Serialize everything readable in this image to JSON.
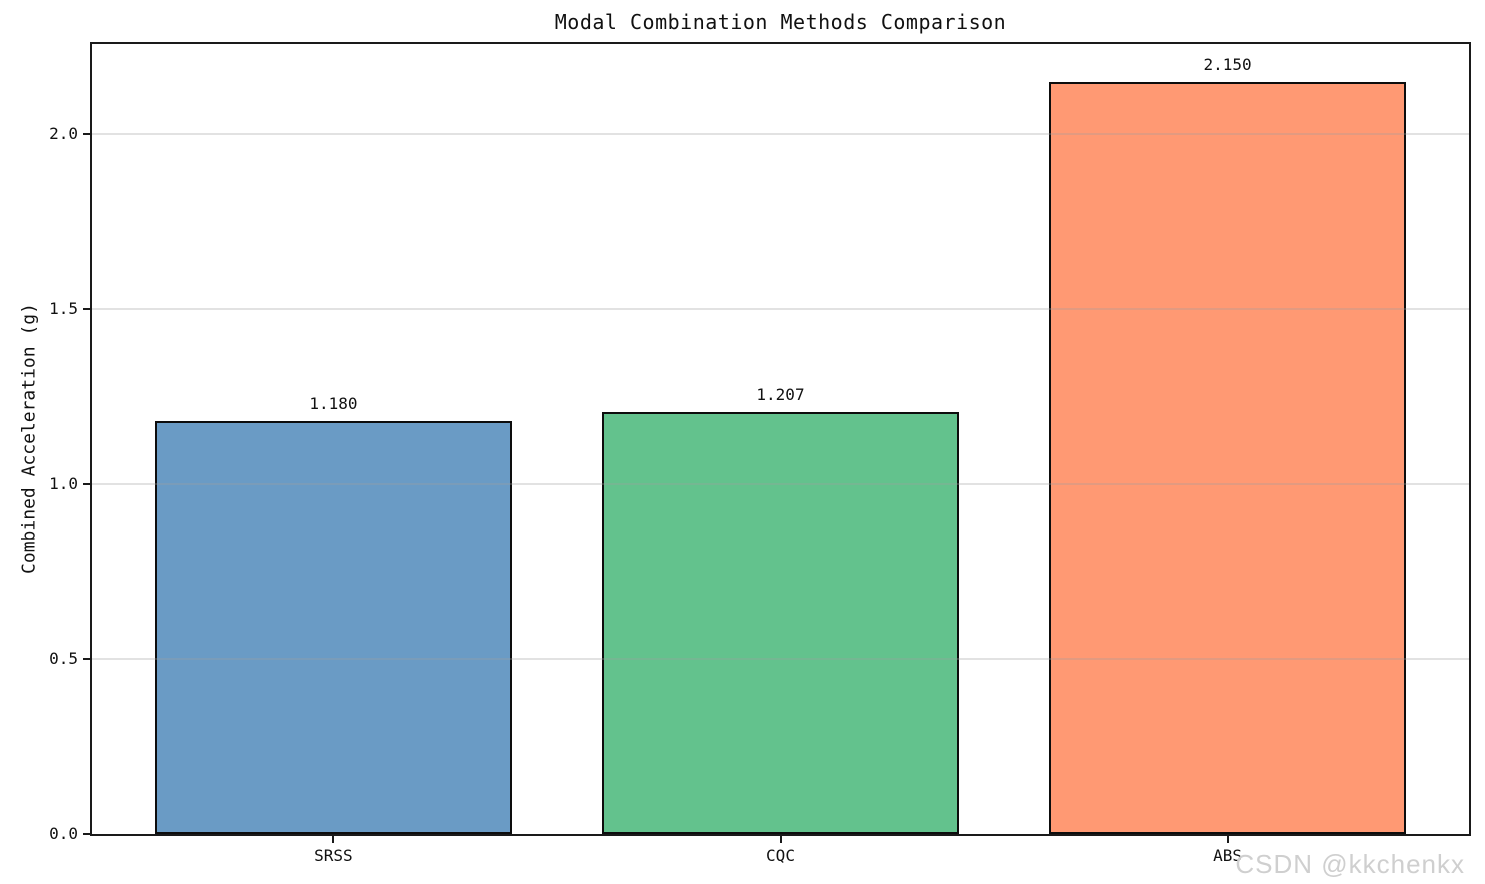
{
  "chart_data": {
    "type": "bar",
    "title": "Modal Combination Methods Comparison",
    "xlabel": "",
    "ylabel": "Combined Acceleration (g)",
    "categories": [
      "SRSS",
      "CQC",
      "ABS"
    ],
    "values": [
      1.18,
      1.207,
      2.15
    ],
    "value_labels": [
      "1.180",
      "1.207",
      "2.150"
    ],
    "bar_colors": [
      "#6A9BC5",
      "#63C28D",
      "#FF9973"
    ],
    "bar_edge_color": "#0d0d0d",
    "ylim": [
      0,
      2.2575
    ],
    "yticks": [
      0.0,
      0.5,
      1.0,
      1.5,
      2.0
    ],
    "ytick_labels": [
      "0.0",
      "0.5",
      "1.0",
      "1.5",
      "2.0"
    ],
    "grid": true,
    "grid_axis": "y",
    "legend_position": "none",
    "bar_width_fraction": 0.8
  },
  "watermark": {
    "text": "CSDN @kkchenkx",
    "color": "#cfcfcf"
  }
}
